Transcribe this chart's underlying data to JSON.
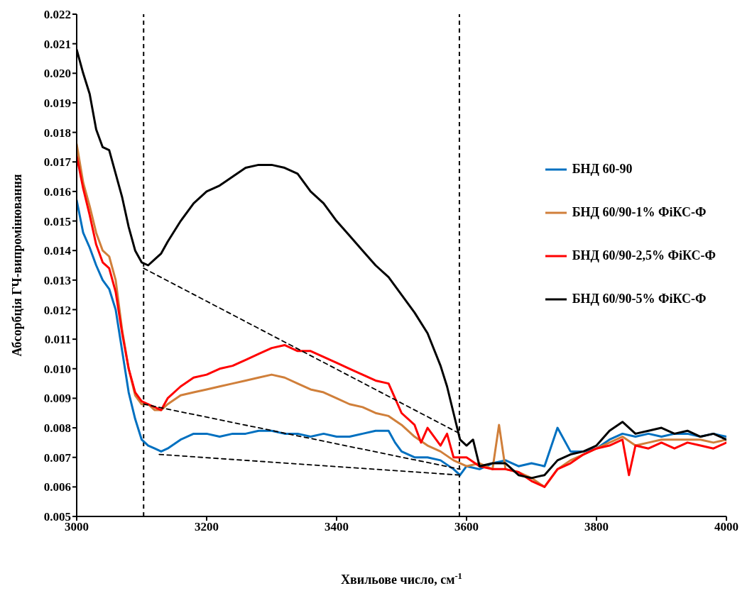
{
  "chart_data": {
    "type": "line",
    "xlabel": "Хвильове число, см$^{-1}$",
    "ylabel": "Абсорбція ГЧ-випромінювання",
    "xlim": [
      3000,
      4000
    ],
    "xticks": [
      3000,
      3200,
      3400,
      3600,
      3800,
      4000
    ],
    "ylim": [
      0.005,
      0.022
    ],
    "yticks": [
      0.005,
      0.006,
      0.007,
      0.008,
      0.009,
      {
        "value": 0.01,
        "label": "0.010"
      },
      0.011,
      0.012,
      0.013,
      0.014,
      0.015,
      0.016,
      0.017,
      0.018,
      0.019,
      {
        "value": 0.02,
        "label": "0.020"
      },
      0.021,
      0.022
    ],
    "legend": "right",
    "marker": "none",
    "line_style": "solid",
    "ref_lines": [
      {
        "axis": "x",
        "value": 3103,
        "color": "#000000",
        "line_style": "dashed"
      },
      {
        "axis": "x",
        "value": 3589,
        "color": "#000000",
        "line_style": "dashed"
      }
    ],
    "series": [
      {
        "name": "БНД 60-90",
        "color": "#0070c0",
        "x": [
          3000,
          3010,
          3020,
          3030,
          3040,
          3050,
          3060,
          3070,
          3080,
          3090,
          3100,
          3110,
          3120,
          3130,
          3140,
          3160,
          3180,
          3200,
          3220,
          3240,
          3260,
          3280,
          3300,
          3320,
          3340,
          3360,
          3380,
          3400,
          3420,
          3440,
          3460,
          3480,
          3490,
          3500,
          3520,
          3540,
          3560,
          3580,
          3590,
          3600,
          3620,
          3640,
          3660,
          3680,
          3700,
          3720,
          3740,
          3760,
          3780,
          3800,
          3820,
          3840,
          3860,
          3880,
          3900,
          3920,
          3940,
          3960,
          3980,
          4000
        ],
        "values": [
          0.0157,
          0.0146,
          0.0141,
          0.0135,
          0.013,
          0.0127,
          0.012,
          0.0106,
          0.0092,
          0.0083,
          0.0076,
          0.0074,
          0.0073,
          0.0072,
          0.0073,
          0.0076,
          0.0078,
          0.0078,
          0.0077,
          0.0078,
          0.0078,
          0.0079,
          0.0079,
          0.0078,
          0.0078,
          0.0077,
          0.0078,
          0.0077,
          0.0077,
          0.0078,
          0.0079,
          0.0079,
          0.0075,
          0.0072,
          0.007,
          0.007,
          0.0069,
          0.0066,
          0.0064,
          0.0067,
          0.0066,
          0.0068,
          0.0069,
          0.0067,
          0.0068,
          0.0067,
          0.008,
          0.0072,
          0.0072,
          0.0073,
          0.0076,
          0.0078,
          0.0077,
          0.0078,
          0.0077,
          0.0078,
          0.0078,
          0.0077,
          0.0078,
          0.0077
        ]
      },
      {
        "name": "БНД 60/90-1% ФіКС-Ф",
        "color": "#d07f3a",
        "x": [
          3000,
          3010,
          3020,
          3030,
          3040,
          3050,
          3060,
          3070,
          3080,
          3090,
          3100,
          3110,
          3120,
          3130,
          3140,
          3160,
          3180,
          3200,
          3220,
          3240,
          3260,
          3280,
          3300,
          3320,
          3340,
          3360,
          3380,
          3400,
          3420,
          3440,
          3460,
          3480,
          3500,
          3520,
          3540,
          3560,
          3580,
          3600,
          3620,
          3640,
          3650,
          3660,
          3680,
          3700,
          3720,
          3740,
          3760,
          3780,
          3800,
          3820,
          3840,
          3860,
          3880,
          3900,
          3920,
          3940,
          3960,
          3980,
          4000
        ],
        "values": [
          0.0176,
          0.0163,
          0.0155,
          0.0146,
          0.014,
          0.0138,
          0.013,
          0.0113,
          0.01,
          0.0091,
          0.0088,
          0.0088,
          0.0086,
          0.0086,
          0.0088,
          0.0091,
          0.0092,
          0.0093,
          0.0094,
          0.0095,
          0.0096,
          0.0097,
          0.0098,
          0.0097,
          0.0095,
          0.0093,
          0.0092,
          0.009,
          0.0088,
          0.0087,
          0.0085,
          0.0084,
          0.0081,
          0.0077,
          0.0074,
          0.0072,
          0.0069,
          0.0067,
          0.0068,
          0.0066,
          0.0081,
          0.0066,
          0.0065,
          0.0063,
          0.006,
          0.0066,
          0.0069,
          0.0071,
          0.0073,
          0.0075,
          0.0077,
          0.0074,
          0.0075,
          0.0076,
          0.0076,
          0.0076,
          0.0076,
          0.0075,
          0.0076
        ]
      },
      {
        "name": "БНД 60/90-2,5% ФіКС-Ф",
        "color": "#ff0000",
        "x": [
          3000,
          3010,
          3020,
          3030,
          3040,
          3050,
          3060,
          3070,
          3080,
          3090,
          3100,
          3110,
          3120,
          3130,
          3140,
          3160,
          3180,
          3200,
          3220,
          3240,
          3260,
          3280,
          3300,
          3320,
          3340,
          3360,
          3380,
          3400,
          3420,
          3440,
          3460,
          3480,
          3490,
          3500,
          3520,
          3530,
          3540,
          3560,
          3570,
          3580,
          3600,
          3620,
          3640,
          3660,
          3680,
          3700,
          3720,
          3740,
          3760,
          3780,
          3800,
          3820,
          3840,
          3850,
          3860,
          3880,
          3900,
          3920,
          3940,
          3960,
          3980,
          4000
        ],
        "values": [
          0.0172,
          0.0161,
          0.0152,
          0.0142,
          0.0136,
          0.0134,
          0.0126,
          0.0112,
          0.01,
          0.0092,
          0.0089,
          0.0088,
          0.0087,
          0.0086,
          0.009,
          0.0094,
          0.0097,
          0.0098,
          0.01,
          0.0101,
          0.0103,
          0.0105,
          0.0107,
          0.0108,
          0.0106,
          0.0106,
          0.0104,
          0.0102,
          0.01,
          0.0098,
          0.0096,
          0.0095,
          0.009,
          0.0085,
          0.0081,
          0.0075,
          0.008,
          0.0074,
          0.0078,
          0.007,
          0.007,
          0.0067,
          0.0066,
          0.0066,
          0.0065,
          0.0062,
          0.006,
          0.0066,
          0.0068,
          0.0071,
          0.0073,
          0.0074,
          0.0076,
          0.0064,
          0.0074,
          0.0073,
          0.0075,
          0.0073,
          0.0075,
          0.0074,
          0.0073,
          0.0075
        ]
      },
      {
        "name": "БНД 60/90-5% ФіКС-Ф",
        "color": "#000000",
        "x": [
          3000,
          3010,
          3020,
          3030,
          3040,
          3050,
          3060,
          3070,
          3080,
          3090,
          3100,
          3110,
          3120,
          3130,
          3140,
          3160,
          3180,
          3200,
          3220,
          3240,
          3260,
          3280,
          3300,
          3320,
          3340,
          3360,
          3380,
          3400,
          3420,
          3440,
          3460,
          3480,
          3500,
          3520,
          3540,
          3560,
          3570,
          3580,
          3590,
          3600,
          3610,
          3620,
          3640,
          3660,
          3680,
          3700,
          3720,
          3740,
          3760,
          3780,
          3800,
          3820,
          3840,
          3860,
          3880,
          3900,
          3920,
          3940,
          3960,
          3980,
          4000
        ],
        "values": [
          0.0208,
          0.02,
          0.0193,
          0.0181,
          0.0175,
          0.0174,
          0.0166,
          0.0158,
          0.0148,
          0.014,
          0.0136,
          0.0135,
          0.0137,
          0.0139,
          0.0143,
          0.015,
          0.0156,
          0.016,
          0.0162,
          0.0165,
          0.0168,
          0.0169,
          0.0169,
          0.0168,
          0.0166,
          0.016,
          0.0156,
          0.015,
          0.0145,
          0.014,
          0.0135,
          0.0131,
          0.0125,
          0.0119,
          0.0112,
          0.0101,
          0.0094,
          0.0085,
          0.0076,
          0.0074,
          0.0076,
          0.0067,
          0.0068,
          0.0068,
          0.0064,
          0.0063,
          0.0064,
          0.0069,
          0.0071,
          0.0072,
          0.0074,
          0.0079,
          0.0082,
          0.0078,
          0.0079,
          0.008,
          0.0078,
          0.0079,
          0.0077,
          0.0078,
          0.0076
        ]
      },
      {
        "color": "#000000",
        "line_style": "dashed",
        "x": [
          3103,
          3590
        ],
        "values": [
          0.0134,
          0.0078
        ]
      },
      {
        "color": "#000000",
        "line_style": "dashed",
        "x": [
          3103,
          3590
        ],
        "values": [
          0.0088,
          0.0066
        ]
      },
      {
        "color": "#000000",
        "line_style": "dashed",
        "x": [
          3127,
          3590
        ],
        "values": [
          0.0071,
          0.0064
        ]
      }
    ]
  }
}
